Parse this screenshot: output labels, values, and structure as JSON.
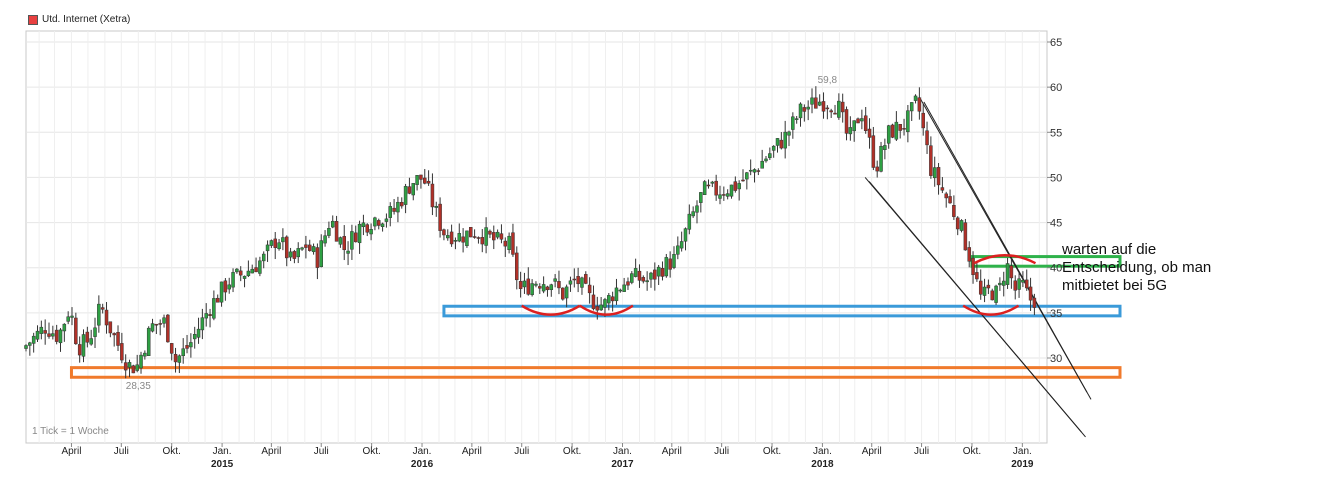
{
  "legend": {
    "label": "Utd. Internet (Xetra)",
    "color": "#e84040"
  },
  "tick_note": "1 Tick = 1 Woche",
  "annotation": {
    "lines": [
      "warten auf die",
      "Entscheidung, ob man",
      "mitbietet bei 5G"
    ]
  },
  "chart_data": {
    "type": "candlestick",
    "title": "",
    "xlabel": "",
    "ylabel": "",
    "ylim": [
      26.5,
      66.5
    ],
    "y_ticks": [
      65,
      60,
      55,
      50,
      45,
      40,
      35,
      30
    ],
    "y_tick_labels": [
      "65",
      "60",
      "55",
      "50",
      "45",
      "40",
      "35",
      "30"
    ],
    "x_range": [
      "2014-01-08",
      "2019-02-15"
    ],
    "x_ticks": [
      {
        "date": "2014-04-01",
        "label": "April",
        "year": ""
      },
      {
        "date": "2014-07-01",
        "label": "Juli",
        "year": ""
      },
      {
        "date": "2014-10-01",
        "label": "Okt.",
        "year": ""
      },
      {
        "date": "2015-01-01",
        "label": "Jan.",
        "year": "2015"
      },
      {
        "date": "2015-04-01",
        "label": "April",
        "year": ""
      },
      {
        "date": "2015-07-01",
        "label": "Juli",
        "year": ""
      },
      {
        "date": "2015-10-01",
        "label": "Okt.",
        "year": ""
      },
      {
        "date": "2016-01-01",
        "label": "Jan.",
        "year": "2016"
      },
      {
        "date": "2016-04-01",
        "label": "April",
        "year": ""
      },
      {
        "date": "2016-07-01",
        "label": "Juli",
        "year": ""
      },
      {
        "date": "2016-10-01",
        "label": "Okt.",
        "year": ""
      },
      {
        "date": "2017-01-01",
        "label": "Jan.",
        "year": "2017"
      },
      {
        "date": "2017-04-01",
        "label": "April",
        "year": ""
      },
      {
        "date": "2017-07-01",
        "label": "Juli",
        "year": ""
      },
      {
        "date": "2017-10-01",
        "label": "Okt.",
        "year": ""
      },
      {
        "date": "2018-01-01",
        "label": "Jan.",
        "year": "2018"
      },
      {
        "date": "2018-04-01",
        "label": "April",
        "year": ""
      },
      {
        "date": "2018-07-01",
        "label": "Juli",
        "year": ""
      },
      {
        "date": "2018-10-01",
        "label": "Okt.",
        "year": ""
      },
      {
        "date": "2019-01-01",
        "label": "Jan.",
        "year": "2019"
      }
    ],
    "grid": true,
    "up_color": "#2ea043",
    "down_color": "#b03028",
    "price_path": [
      [
        "2014-01-08",
        31.0
      ],
      [
        "2014-02-20",
        33.5
      ],
      [
        "2014-03-15",
        32.4
      ],
      [
        "2014-04-05",
        35.6
      ],
      [
        "2014-04-20",
        31.2
      ],
      [
        "2014-05-10",
        32.0
      ],
      [
        "2014-06-01",
        35.7
      ],
      [
        "2014-06-20",
        33.0
      ],
      [
        "2014-07-20",
        29.2
      ],
      [
        "2014-08-05",
        29.0
      ],
      [
        "2014-09-01",
        33.5
      ],
      [
        "2014-09-25",
        34.0
      ],
      [
        "2014-10-15",
        29.7
      ],
      [
        "2014-11-10",
        31.5
      ],
      [
        "2014-12-15",
        35.5
      ],
      [
        "2015-01-20",
        38.5
      ],
      [
        "2015-02-20",
        39.5
      ],
      [
        "2015-03-25",
        41.0
      ],
      [
        "2015-04-20",
        43.5
      ],
      [
        "2015-05-15",
        40.5
      ],
      [
        "2015-06-10",
        42.5
      ],
      [
        "2015-07-01",
        41.0
      ],
      [
        "2015-07-25",
        45.5
      ],
      [
        "2015-08-20",
        42.0
      ],
      [
        "2015-09-15",
        44.5
      ],
      [
        "2015-10-15",
        45.5
      ],
      [
        "2015-11-15",
        46.0
      ],
      [
        "2015-12-20",
        49.5
      ],
      [
        "2016-01-10",
        50.0
      ],
      [
        "2016-02-15",
        44.0
      ],
      [
        "2016-03-15",
        43.5
      ],
      [
        "2016-04-15",
        44.0
      ],
      [
        "2016-05-20",
        43.0
      ],
      [
        "2016-06-15",
        42.5
      ],
      [
        "2016-07-05",
        37.5
      ],
      [
        "2016-08-01",
        38.5
      ],
      [
        "2016-09-01",
        38.5
      ],
      [
        "2016-09-20",
        37.0
      ],
      [
        "2016-10-15",
        38.8
      ],
      [
        "2016-11-10",
        36.5
      ],
      [
        "2016-12-05",
        35.8
      ],
      [
        "2016-12-25",
        37.5
      ],
      [
        "2017-01-25",
        39.0
      ],
      [
        "2017-02-25",
        38.5
      ],
      [
        "2017-03-20",
        40.0
      ],
      [
        "2017-04-15",
        41.0
      ],
      [
        "2017-05-10",
        45.0
      ],
      [
        "2017-06-05",
        48.5
      ],
      [
        "2017-07-01",
        48.5
      ],
      [
        "2017-08-01",
        49.0
      ],
      [
        "2017-09-01",
        50.5
      ],
      [
        "2017-10-01",
        52.5
      ],
      [
        "2017-11-01",
        54.5
      ],
      [
        "2017-12-01",
        57.5
      ],
      [
        "2018-01-05",
        58.5
      ],
      [
        "2018-02-05",
        58.0
      ],
      [
        "2018-02-25",
        54.0
      ],
      [
        "2018-03-20",
        57.5
      ],
      [
        "2018-04-15",
        51.0
      ],
      [
        "2018-05-10",
        55.0
      ],
      [
        "2018-06-10",
        56.0
      ],
      [
        "2018-06-30",
        58.5
      ],
      [
        "2018-07-25",
        51.0
      ],
      [
        "2018-08-20",
        48.0
      ],
      [
        "2018-09-15",
        45.0
      ],
      [
        "2018-10-05",
        41.0
      ],
      [
        "2018-10-25",
        36.5
      ],
      [
        "2018-11-10",
        37.5
      ],
      [
        "2018-11-25",
        37.0
      ],
      [
        "2018-12-10",
        40.5
      ],
      [
        "2018-12-25",
        37.5
      ],
      [
        "2019-01-10",
        38.0
      ],
      [
        "2019-01-20",
        36.5
      ]
    ],
    "extremes": [
      {
        "label": "59,8",
        "date": "2018-01-10",
        "value": 59.8
      },
      {
        "label": "28,35",
        "date": "2014-08-01",
        "value": 28.35
      }
    ],
    "support_zones": [
      {
        "color": "#f07a2c",
        "x_from": "2014-04-01",
        "y_low": 28.2,
        "y_high": 28.6
      },
      {
        "color": "#3a9ad9",
        "x_from": "2016-02-10",
        "y_low": 35.0,
        "y_high": 35.4
      }
    ],
    "resistance_zones": [
      {
        "color": "#2eb24a",
        "x_from": "2018-10-01",
        "y_low": 40.5,
        "y_high": 40.9
      }
    ],
    "trend_channel": {
      "color": "#222222",
      "upper": [
        [
          "2018-06-28",
          58.8
        ],
        [
          "2019-02-15",
          34.0
        ]
      ],
      "lower": [
        [
          "2018-03-20",
          50.0
        ],
        [
          "2019-02-05",
          27.0
        ]
      ]
    },
    "arcs": [
      {
        "color": "#dd2020",
        "shape": "smile",
        "from": "2016-07-01",
        "to": "2016-10-15",
        "y": 35.8
      },
      {
        "color": "#dd2020",
        "shape": "smile",
        "from": "2016-10-15",
        "to": "2017-01-20",
        "y": 35.8
      },
      {
        "color": "#dd2020",
        "shape": "smile",
        "from": "2018-09-15",
        "to": "2018-12-25",
        "y": 35.8
      },
      {
        "color": "#dd2020",
        "shape": "frown",
        "from": "2018-10-05",
        "to": "2019-01-25",
        "y": 40.5
      }
    ]
  }
}
